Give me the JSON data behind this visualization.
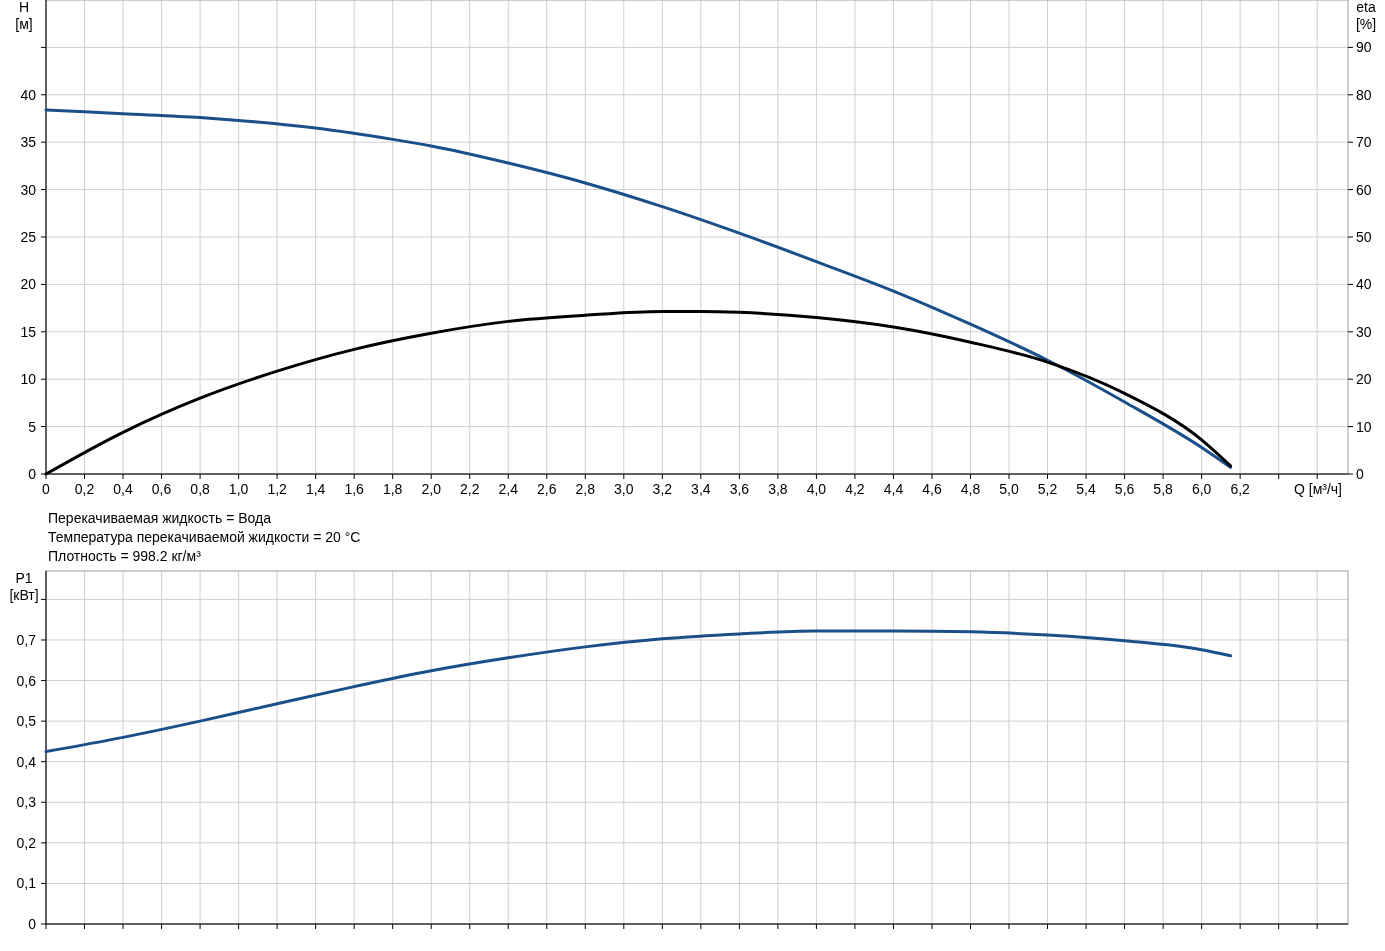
{
  "chart_data": [
    {
      "type": "line",
      "xlabel": "Q [м³/ч]",
      "ylabel": "H [м]",
      "y2label": "eta [%]",
      "grid": true,
      "xlim": [
        0,
        6.76
      ],
      "ylim": [
        0,
        50
      ],
      "y2lim": [
        0,
        100
      ],
      "xticks": [
        0,
        {
          "value": 0.2,
          "label": "0,2"
        },
        {
          "value": 0.4,
          "label": "0,4"
        },
        {
          "value": 0.6,
          "label": "0,6"
        },
        {
          "value": 0.8,
          "label": "0,8"
        },
        {
          "value": 1,
          "label": "1,0"
        },
        {
          "value": 1.2,
          "label": "1,2"
        },
        {
          "value": 1.4,
          "label": "1,4"
        },
        {
          "value": 1.6,
          "label": "1,6"
        },
        {
          "value": 1.8,
          "label": "1,8"
        },
        {
          "value": 2,
          "label": "2,0"
        },
        {
          "value": 2.2,
          "label": "2,2"
        },
        {
          "value": 2.4,
          "label": "2,4"
        },
        {
          "value": 2.6,
          "label": "2,6"
        },
        {
          "value": 2.8,
          "label": "2,8"
        },
        {
          "value": 3,
          "label": "3,0"
        },
        {
          "value": 3.2,
          "label": "3,2"
        },
        {
          "value": 3.4,
          "label": "3,4"
        },
        {
          "value": 3.6,
          "label": "3,6"
        },
        {
          "value": 3.8,
          "label": "3,8"
        },
        {
          "value": 4,
          "label": "4,0"
        },
        {
          "value": 4.2,
          "label": "4,2"
        },
        {
          "value": 4.4,
          "label": "4,4"
        },
        {
          "value": 4.6,
          "label": "4,6"
        },
        {
          "value": 4.8,
          "label": "4,8"
        },
        {
          "value": 5,
          "label": "5,0"
        },
        {
          "value": 5.2,
          "label": "5,2"
        },
        {
          "value": 5.4,
          "label": "5,4"
        },
        {
          "value": 5.6,
          "label": "5,6"
        },
        {
          "value": 5.8,
          "label": "5,8"
        },
        {
          "value": 6,
          "label": "6,0"
        },
        {
          "value": 6.2,
          "label": "6,2"
        },
        {
          "value": 6.4,
          "label": null
        },
        {
          "value": 6.6,
          "label": null
        }
      ],
      "yticks": [
        0,
        5,
        10,
        15,
        20,
        25,
        30,
        35,
        40,
        {
          "value": 45,
          "label": null
        }
      ],
      "y2ticks": [
        0,
        10,
        20,
        30,
        40,
        50,
        60,
        70,
        80,
        90
      ],
      "series": [
        {
          "color": "#1a4f8a",
          "x": [
            0,
            0.4,
            0.8,
            1.0,
            1.4,
            1.8,
            2.0,
            2.4,
            2.8,
            3.2,
            3.6,
            4.0,
            4.4,
            4.8,
            5.2,
            5.6,
            6.0,
            6.15
          ],
          "values": [
            38.4,
            38.0,
            37.6,
            37.3,
            36.5,
            35.3,
            34.6,
            32.8,
            30.7,
            28.2,
            25.4,
            22.4,
            19.3,
            15.8,
            12.0,
            7.6,
            2.8,
            0.7
          ]
        },
        {
          "color": "#000000",
          "axis": "y2",
          "x": [
            0,
            0.4,
            0.8,
            1.2,
            1.6,
            2.0,
            2.4,
            2.8,
            3.2,
            3.4,
            3.6,
            4.0,
            4.4,
            4.8,
            5.2,
            5.6,
            6.0,
            6.15
          ],
          "values": [
            0,
            8.8,
            16,
            21.7,
            26.3,
            29.7,
            32.2,
            33.5,
            34.3,
            34.3,
            34.1,
            33,
            31,
            27.8,
            23.6,
            17,
            7.2,
            1.7
          ]
        }
      ],
      "annotations": [
        "Перекачиваемая жидкость = Вода",
        "Температура перекачиваемой жидкости = 20 °C",
        "Плотность = 998.2 кг/м³"
      ]
    },
    {
      "type": "line",
      "ylabel": "P1 [кВт]",
      "grid": true,
      "tick_labels": "y",
      "xlim": [
        0,
        6.76
      ],
      "ylim": [
        0,
        0.87
      ],
      "xticks": [
        0,
        0.2,
        0.4,
        0.6,
        0.8,
        1,
        1.2,
        1.4,
        1.6,
        1.8,
        2,
        2.2,
        2.4,
        2.6,
        2.8,
        3,
        3.2,
        3.4,
        3.6,
        3.8,
        4,
        4.2,
        4.4,
        4.6,
        4.8,
        5,
        5.2,
        5.4,
        5.6,
        5.8,
        6,
        6.2,
        6.4,
        6.6
      ],
      "yticks": [
        0,
        {
          "value": 0.1,
          "label": "0,1"
        },
        {
          "value": 0.2,
          "label": "0,2"
        },
        {
          "value": 0.3,
          "label": "0,3"
        },
        {
          "value": 0.4,
          "label": "0,4"
        },
        {
          "value": 0.5,
          "label": "0,5"
        },
        {
          "value": 0.6,
          "label": "0,6"
        },
        {
          "value": 0.7,
          "label": "0,7"
        },
        {
          "value": 0.8,
          "label": null
        }
      ],
      "series": [
        {
          "color": "#1a4f8a",
          "x": [
            0,
            0.4,
            0.8,
            1.2,
            1.6,
            2.0,
            2.4,
            2.8,
            3.2,
            3.6,
            4.0,
            4.4,
            4.8,
            5.2,
            5.6,
            6.0,
            6.15
          ],
          "values": [
            0.425,
            0.46,
            0.5,
            0.543,
            0.585,
            0.624,
            0.656,
            0.683,
            0.703,
            0.715,
            0.722,
            0.722,
            0.72,
            0.712,
            0.698,
            0.676,
            0.661
          ]
        }
      ]
    }
  ]
}
